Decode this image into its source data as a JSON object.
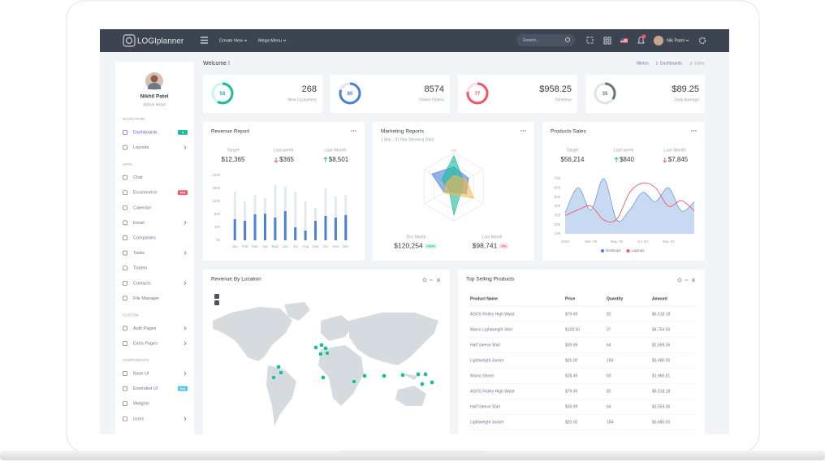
{
  "topbar": {
    "logo": "LOGIplanner",
    "menu": [
      "Create New",
      "Mega Menu"
    ],
    "search": "Search...",
    "user": "Nik Patel"
  },
  "sidebar": {
    "name": "Nikhil Patel",
    "role": "Admin Head",
    "sections": [
      {
        "title": "NAVIGATION",
        "items": [
          {
            "label": "Dashboards",
            "badge": "3",
            "badge_color": "#1abc9c",
            "active": true
          },
          {
            "label": "Layouts",
            "submenu": true
          }
        ]
      },
      {
        "title": "APPS",
        "items": [
          {
            "label": "Chat"
          },
          {
            "label": "Ecommerce",
            "badge": "Hot",
            "badge_color": "#f1556c"
          },
          {
            "label": "Calendar"
          },
          {
            "label": "Email",
            "submenu": true
          },
          {
            "label": "Companies"
          },
          {
            "label": "Tasks",
            "submenu": true
          },
          {
            "label": "Tickets"
          },
          {
            "label": "Contacts",
            "submenu": true
          },
          {
            "label": "File Manager"
          }
        ]
      },
      {
        "title": "CUSTOM",
        "items": [
          {
            "label": "Auth Pages",
            "submenu": true
          },
          {
            "label": "Extra Pages",
            "submenu": true
          }
        ]
      },
      {
        "title": "COMPONENTS",
        "items": [
          {
            "label": "Base UI",
            "submenu": true
          },
          {
            "label": "Extended UI",
            "badge": "Hot",
            "badge_color": "#4fc6e1"
          },
          {
            "label": "Widgets"
          },
          {
            "label": "Icons",
            "submenu": true
          }
        ]
      }
    ]
  },
  "header": {
    "title": "Welcome !",
    "breadcrumb": [
      "Minton",
      "Dashboards",
      "Sales"
    ]
  },
  "stats": [
    {
      "ring": 58,
      "color": "#1abc9c",
      "value": "268",
      "label": "New Customers"
    },
    {
      "ring": 80,
      "color": "#4a81d4",
      "value": "8574",
      "label": "Online Orders"
    },
    {
      "ring": 77,
      "color": "#f1556c",
      "value": "$958.25",
      "label": "Revenue"
    },
    {
      "ring": 35,
      "color": "#6c757d",
      "value": "$89.25",
      "label": "Daily Average"
    }
  ],
  "chart_data": [
    {
      "type": "bar",
      "title": "Revenue Report",
      "summary": [
        {
          "label": "Target",
          "value": "$12,365"
        },
        {
          "label": "Last week",
          "value": "$365",
          "trend": "down"
        },
        {
          "label": "Last Month",
          "value": "$8,501",
          "trend": "up"
        }
      ],
      "categories": [
        "Jan",
        "Feb",
        "Mar",
        "Apr",
        "May",
        "Jun",
        "Jul",
        "Aug",
        "Sep",
        "Oct",
        "Nov",
        "Dec"
      ],
      "series": [
        {
          "color": "#e3eaef",
          "values": [
            150000,
            120000,
            140000,
            130000,
            170000,
            165000,
            150000,
            120000,
            100000,
            160000,
            135000,
            140000
          ]
        },
        {
          "color": "#4a81d4",
          "values": [
            65000,
            60000,
            80000,
            82000,
            70000,
            90000,
            40000,
            30000,
            60000,
            75000,
            70000,
            78000
          ]
        }
      ],
      "ylim": [
        0,
        200000
      ],
      "yticks": [
        {
          "value": 0,
          "label": "0k"
        },
        {
          "value": 40000,
          "label": "40k"
        },
        {
          "value": 80000,
          "label": "80k"
        },
        {
          "value": 120000,
          "label": "120k"
        },
        {
          "value": 160000,
          "label": "160k"
        },
        {
          "value": 200000,
          "label": "200k"
        }
      ]
    },
    {
      "type": "radar",
      "title": "Marketing Reports",
      "subtitle": "1 Mar - 31 Mar Showing Data",
      "categories": [
        null,
        null,
        null,
        null,
        null,
        null
      ],
      "series": [
        {
          "color": "#4a81d4",
          "values": [
            70,
            60,
            50,
            20,
            40,
            90
          ]
        },
        {
          "color": "#1abc9c",
          "values": [
            110,
            40,
            30,
            100,
            20,
            50
          ]
        },
        {
          "color": "#f7b84b",
          "values": [
            40,
            50,
            80,
            30,
            40,
            30
          ]
        }
      ],
      "rlim": [
        0,
        120
      ],
      "rticks": [
        40,
        80,
        120
      ],
      "summary": [
        {
          "label": "This Month",
          "value": "$120,254",
          "badge": "+10%",
          "badge_color": "#1abc9c"
        },
        {
          "label": "Last Month",
          "value": "$98,741",
          "badge": "-5%",
          "badge_color": "#f1556c"
        }
      ]
    },
    {
      "type": "line",
      "title": "Products Sales",
      "summary": [
        {
          "label": "Target",
          "value": "$56,214"
        },
        {
          "label": "Last week",
          "value": "$840",
          "trend": "up"
        },
        {
          "label": "Last Month",
          "value": "$7,845",
          "trend": "down"
        }
      ],
      "categories": [
        "2020",
        null,
        "Mar '20",
        null,
        "May '20",
        null,
        "Jul '20",
        null,
        "Sep '20",
        null,
        null
      ],
      "series": [
        {
          "name": "Desktops",
          "color": "#4a81d4",
          "area": true,
          "values": [
            33000,
            60000,
            36000,
            70000,
            25000,
            36000,
            55000,
            45000,
            60000,
            35000,
            45000
          ]
        },
        {
          "name": "Laptops",
          "color": "#f1556c",
          "values": [
            30000,
            36000,
            40000,
            25000,
            26000,
            55000,
            65000,
            60000,
            40000,
            46000,
            35000
          ]
        }
      ],
      "ylim": [
        10000,
        70000
      ],
      "yticks": [
        {
          "value": 10000,
          "label": "10k"
        },
        {
          "value": 20000,
          "label": "20k"
        },
        {
          "value": 30000,
          "label": "30k"
        },
        {
          "value": 40000,
          "label": "40k"
        },
        {
          "value": 50000,
          "label": "50k"
        },
        {
          "value": 60000,
          "label": "60k"
        },
        {
          "value": 70000,
          "label": "70k"
        }
      ],
      "legend": "bottom"
    }
  ],
  "map": {
    "title": "Revenue By Location"
  },
  "table": {
    "title": "Top Selling Products",
    "columns": [
      "Product Name",
      "Price",
      "Quantity",
      "Amount"
    ],
    "rows": [
      [
        "ASOS Ridley High Waist",
        "$79.49",
        "82",
        "$6,518.18"
      ],
      [
        "Marco Lightweight Shirt",
        "$128.50",
        "37",
        "$4,754.50"
      ],
      [
        "Half Sleeve Shirt",
        "$39.99",
        "64",
        "$2,559.36"
      ],
      [
        "Lightweight Jacket",
        "$20.00",
        "184",
        "$3,680.00"
      ],
      [
        "Marco Shoes",
        "$28.49",
        "69",
        "$1,965.81"
      ],
      [
        "ASOS Ridley High Waist",
        "$79.49",
        "82",
        "$6,518.18"
      ],
      [
        "Half Sleeve Shirt",
        "$39.99",
        "64",
        "$2,559.36"
      ],
      [
        "Lightweight Jacket",
        "$20.00",
        "184",
        "$3,680.00"
      ]
    ]
  }
}
